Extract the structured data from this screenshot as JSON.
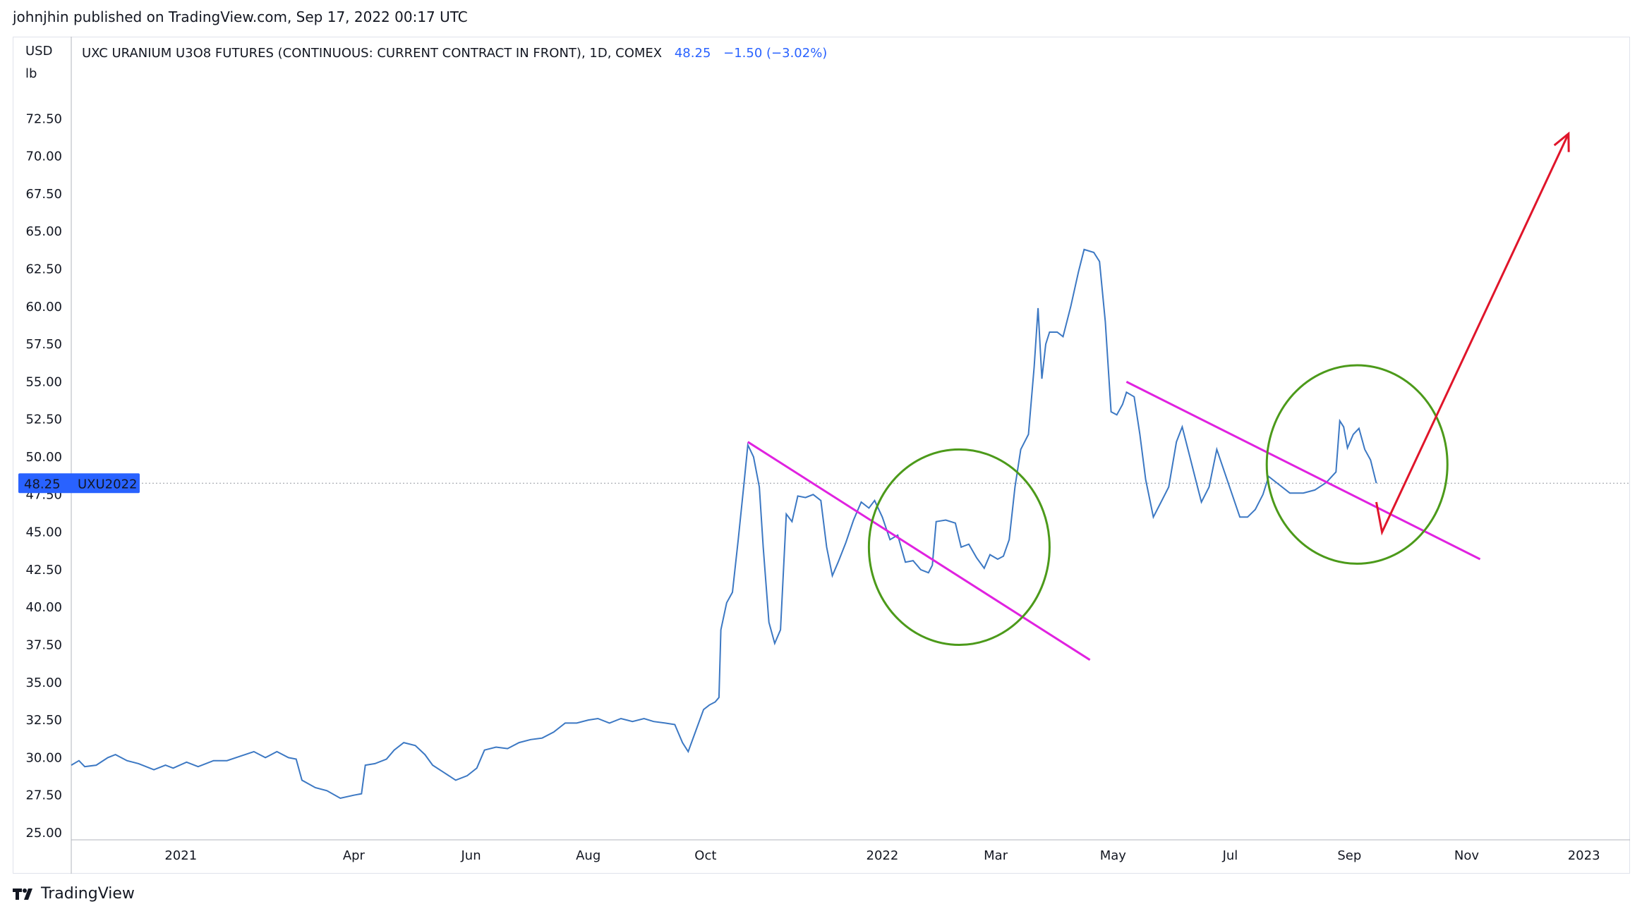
{
  "publish_line": "johnjhin published on TradingView.com, Sep 17, 2022 00:17 UTC",
  "footer_brand": "TradingView",
  "legend": {
    "title": "UXC URANIUM U3O8 FUTURES (CONTINUOUS: CURRENT CONTRACT IN FRONT), 1D, COMEX",
    "price": "48.25",
    "change": "−1.50 (−3.02%)"
  },
  "colors": {
    "series": "#3c78c3",
    "trendline": "#e022e0",
    "circle": "#4c9a1a",
    "arrow": "#e0152a",
    "price_tag": "#2962ff",
    "legend_value": "#2962ff"
  },
  "chart_data": {
    "type": "line",
    "y_unit_top": "USD",
    "y_unit_bottom": "lb",
    "ylim": [
      25,
      76
    ],
    "y_ticks": [
      "25.00",
      "27.50",
      "30.00",
      "32.50",
      "35.00",
      "37.50",
      "40.00",
      "42.50",
      "45.00",
      "47.50",
      "50.00",
      "52.50",
      "55.00",
      "57.50",
      "60.00",
      "62.50",
      "65.00",
      "67.50",
      "70.00",
      "72.50"
    ],
    "x_range": [
      "2020-11-05",
      "2023-01-25"
    ],
    "x_ticks": [
      {
        "label": "2021",
        "date": "2021-01-01"
      },
      {
        "label": "Apr",
        "date": "2021-04-01"
      },
      {
        "label": "Jun",
        "date": "2021-06-01"
      },
      {
        "label": "Aug",
        "date": "2021-08-01"
      },
      {
        "label": "Oct",
        "date": "2021-10-01"
      },
      {
        "label": "2022",
        "date": "2022-01-01"
      },
      {
        "label": "Mar",
        "date": "2022-03-01"
      },
      {
        "label": "May",
        "date": "2022-05-01"
      },
      {
        "label": "Jul",
        "date": "2022-07-01"
      },
      {
        "label": "Sep",
        "date": "2022-09-01"
      },
      {
        "label": "Nov",
        "date": "2022-11-01"
      },
      {
        "label": "2023",
        "date": "2023-01-01"
      }
    ],
    "last_price": 48.25,
    "price_tag": {
      "value": "48.25",
      "symbol": "UXU2022"
    },
    "series": [
      {
        "points": [
          [
            "2020-11-05",
            29.5
          ],
          [
            "2020-11-09",
            29.8
          ],
          [
            "2020-11-12",
            29.4
          ],
          [
            "2020-11-18",
            29.5
          ],
          [
            "2020-11-24",
            30.0
          ],
          [
            "2020-11-28",
            30.2
          ],
          [
            "2020-12-04",
            29.8
          ],
          [
            "2020-12-10",
            29.6
          ],
          [
            "2020-12-18",
            29.2
          ],
          [
            "2020-12-24",
            29.5
          ],
          [
            "2020-12-28",
            29.3
          ],
          [
            "2021-01-04",
            29.7
          ],
          [
            "2021-01-10",
            29.4
          ],
          [
            "2021-01-18",
            29.8
          ],
          [
            "2021-01-25",
            29.8
          ],
          [
            "2021-02-01",
            30.1
          ],
          [
            "2021-02-08",
            30.4
          ],
          [
            "2021-02-14",
            30.0
          ],
          [
            "2021-02-20",
            30.4
          ],
          [
            "2021-02-26",
            30.0
          ],
          [
            "2021-03-02",
            29.9
          ],
          [
            "2021-03-05",
            28.5
          ],
          [
            "2021-03-12",
            28.0
          ],
          [
            "2021-03-18",
            27.8
          ],
          [
            "2021-03-25",
            27.3
          ],
          [
            "2021-04-01",
            27.5
          ],
          [
            "2021-04-05",
            27.6
          ],
          [
            "2021-04-07",
            29.5
          ],
          [
            "2021-04-12",
            29.6
          ],
          [
            "2021-04-18",
            29.9
          ],
          [
            "2021-04-22",
            30.5
          ],
          [
            "2021-04-27",
            31.0
          ],
          [
            "2021-05-03",
            30.8
          ],
          [
            "2021-05-08",
            30.2
          ],
          [
            "2021-05-12",
            29.5
          ],
          [
            "2021-05-18",
            29.0
          ],
          [
            "2021-05-24",
            28.5
          ],
          [
            "2021-05-30",
            28.8
          ],
          [
            "2021-06-04",
            29.3
          ],
          [
            "2021-06-08",
            30.5
          ],
          [
            "2021-06-14",
            30.7
          ],
          [
            "2021-06-20",
            30.6
          ],
          [
            "2021-06-26",
            31.0
          ],
          [
            "2021-07-02",
            31.2
          ],
          [
            "2021-07-08",
            31.3
          ],
          [
            "2021-07-14",
            31.7
          ],
          [
            "2021-07-20",
            32.3
          ],
          [
            "2021-07-26",
            32.3
          ],
          [
            "2021-08-01",
            32.5
          ],
          [
            "2021-08-06",
            32.6
          ],
          [
            "2021-08-12",
            32.3
          ],
          [
            "2021-08-18",
            32.6
          ],
          [
            "2021-08-24",
            32.4
          ],
          [
            "2021-08-30",
            32.6
          ],
          [
            "2021-09-04",
            32.4
          ],
          [
            "2021-09-10",
            32.3
          ],
          [
            "2021-09-15",
            32.2
          ],
          [
            "2021-09-19",
            31.0
          ],
          [
            "2021-09-22",
            30.4
          ],
          [
            "2021-09-26",
            31.8
          ],
          [
            "2021-09-30",
            33.2
          ],
          [
            "2021-10-03",
            33.5
          ],
          [
            "2021-10-06",
            33.7
          ],
          [
            "2021-10-08",
            34.0
          ],
          [
            "2021-10-09",
            38.5
          ],
          [
            "2021-10-12",
            40.3
          ],
          [
            "2021-10-15",
            41.0
          ],
          [
            "2021-10-18",
            44.5
          ],
          [
            "2021-10-21",
            48.2
          ],
          [
            "2021-10-23",
            50.8
          ],
          [
            "2021-10-26",
            50.0
          ],
          [
            "2021-10-29",
            48.0
          ],
          [
            "2021-10-31",
            44.0
          ],
          [
            "2021-11-03",
            39.0
          ],
          [
            "2021-11-06",
            37.6
          ],
          [
            "2021-11-09",
            38.5
          ],
          [
            "2021-11-12",
            46.2
          ],
          [
            "2021-11-15",
            45.7
          ],
          [
            "2021-11-18",
            47.4
          ],
          [
            "2021-11-22",
            47.3
          ],
          [
            "2021-11-26",
            47.5
          ],
          [
            "2021-11-30",
            47.1
          ],
          [
            "2021-12-03",
            44.0
          ],
          [
            "2021-12-06",
            42.1
          ],
          [
            "2021-12-09",
            43.0
          ],
          [
            "2021-12-13",
            44.3
          ],
          [
            "2021-12-17",
            45.8
          ],
          [
            "2021-12-21",
            47.0
          ],
          [
            "2021-12-25",
            46.6
          ],
          [
            "2021-12-28",
            47.1
          ],
          [
            "2022-01-01",
            46.0
          ],
          [
            "2022-01-05",
            44.5
          ],
          [
            "2022-01-09",
            44.8
          ],
          [
            "2022-01-13",
            43.0
          ],
          [
            "2022-01-17",
            43.1
          ],
          [
            "2022-01-21",
            42.5
          ],
          [
            "2022-01-25",
            42.3
          ],
          [
            "2022-01-27",
            42.8
          ],
          [
            "2022-01-29",
            45.7
          ],
          [
            "2022-02-03",
            45.8
          ],
          [
            "2022-02-08",
            45.6
          ],
          [
            "2022-02-11",
            44.0
          ],
          [
            "2022-02-15",
            44.2
          ],
          [
            "2022-02-19",
            43.3
          ],
          [
            "2022-02-23",
            42.6
          ],
          [
            "2022-02-26",
            43.5
          ],
          [
            "2022-03-02",
            43.2
          ],
          [
            "2022-03-05",
            43.4
          ],
          [
            "2022-03-08",
            44.5
          ],
          [
            "2022-03-11",
            48.0
          ],
          [
            "2022-03-14",
            50.5
          ],
          [
            "2022-03-18",
            51.5
          ],
          [
            "2022-03-21",
            56.0
          ],
          [
            "2022-03-23",
            59.9
          ],
          [
            "2022-03-25",
            55.2
          ],
          [
            "2022-03-27",
            57.5
          ],
          [
            "2022-03-29",
            58.3
          ],
          [
            "2022-04-02",
            58.3
          ],
          [
            "2022-04-05",
            58.0
          ],
          [
            "2022-04-09",
            60.0
          ],
          [
            "2022-04-13",
            62.3
          ],
          [
            "2022-04-16",
            63.8
          ],
          [
            "2022-04-21",
            63.6
          ],
          [
            "2022-04-24",
            63.0
          ],
          [
            "2022-04-27",
            59.0
          ],
          [
            "2022-04-30",
            53.0
          ],
          [
            "2022-05-03",
            52.8
          ],
          [
            "2022-05-06",
            53.5
          ],
          [
            "2022-05-08",
            54.3
          ],
          [
            "2022-05-12",
            54.0
          ],
          [
            "2022-05-15",
            51.5
          ],
          [
            "2022-05-18",
            48.5
          ],
          [
            "2022-05-22",
            46.0
          ],
          [
            "2022-05-26",
            47.0
          ],
          [
            "2022-05-30",
            48.0
          ],
          [
            "2022-06-03",
            51.0
          ],
          [
            "2022-06-06",
            52.0
          ],
          [
            "2022-06-10",
            50.0
          ],
          [
            "2022-06-13",
            48.5
          ],
          [
            "2022-06-16",
            47.0
          ],
          [
            "2022-06-20",
            48.0
          ],
          [
            "2022-06-24",
            50.5
          ],
          [
            "2022-06-28",
            49.0
          ],
          [
            "2022-07-02",
            47.5
          ],
          [
            "2022-07-06",
            46.0
          ],
          [
            "2022-07-10",
            46.0
          ],
          [
            "2022-07-14",
            46.5
          ],
          [
            "2022-07-18",
            47.5
          ],
          [
            "2022-07-21",
            48.7
          ],
          [
            "2022-07-26",
            48.2
          ],
          [
            "2022-08-01",
            47.6
          ],
          [
            "2022-08-08",
            47.6
          ],
          [
            "2022-08-14",
            47.8
          ],
          [
            "2022-08-20",
            48.3
          ],
          [
            "2022-08-25",
            49.0
          ],
          [
            "2022-08-27",
            52.4
          ],
          [
            "2022-08-29",
            52.0
          ],
          [
            "2022-08-31",
            50.6
          ],
          [
            "2022-09-03",
            51.5
          ],
          [
            "2022-09-06",
            51.9
          ],
          [
            "2022-09-09",
            50.5
          ],
          [
            "2022-09-12",
            49.8
          ],
          [
            "2022-09-15",
            48.25
          ]
        ]
      }
    ],
    "annotations": [
      {
        "type": "trendline",
        "from": [
          "2021-10-23",
          51.0
        ],
        "to": [
          "2022-04-19",
          36.5
        ]
      },
      {
        "type": "trendline",
        "from": [
          "2022-05-08",
          55.0
        ],
        "to": [
          "2022-11-08",
          43.2
        ]
      },
      {
        "type": "circle",
        "center": [
          "2022-02-10",
          44.0
        ],
        "radius_days": 47,
        "radius_value": 6.5
      },
      {
        "type": "circle",
        "center": [
          "2022-09-05",
          49.5
        ],
        "radius_days": 47,
        "radius_value": 6.6
      },
      {
        "type": "arrow",
        "points": [
          [
            "2022-09-15",
            47.0
          ],
          [
            "2022-09-18",
            45.0
          ],
          [
            "2022-12-24",
            71.5
          ]
        ]
      }
    ]
  }
}
